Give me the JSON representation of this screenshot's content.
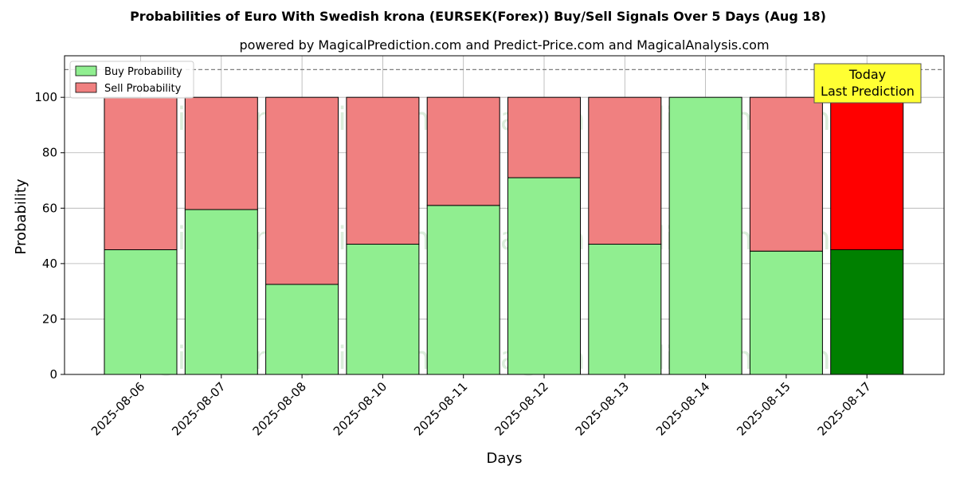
{
  "chart_data": {
    "type": "bar",
    "stacked": true,
    "title": "Probabilities of Euro With Swedish krona (EURSEK(Forex)) Buy/Sell Signals Over 5 Days (Aug 18)",
    "subtitle": "powered by MagicalPrediction.com and Predict-Price.com and MagicalAnalysis.com",
    "xlabel": "Days",
    "ylabel": "Probability",
    "ylim": [
      0,
      115
    ],
    "yticks": [
      0,
      20,
      40,
      60,
      80,
      100
    ],
    "reference_line": 110,
    "grid": true,
    "legend_position": "top-left",
    "categories": [
      "2025-08-06",
      "2025-08-07",
      "2025-08-08",
      "2025-08-10",
      "2025-08-11",
      "2025-08-12",
      "2025-08-13",
      "2025-08-14",
      "2025-08-15",
      "2025-08-17"
    ],
    "series": [
      {
        "name": "Buy Probability",
        "color": "#90ee90",
        "values": [
          45,
          59.5,
          32.5,
          47,
          61,
          71,
          47,
          100,
          44.5,
          45
        ]
      },
      {
        "name": "Sell Probability",
        "color": "#f08080",
        "values": [
          55,
          40.5,
          67.5,
          53,
          39,
          29,
          53,
          0,
          55.5,
          55
        ]
      }
    ],
    "highlight": {
      "index": 9,
      "buy_color": "#008000",
      "sell_color": "#ff0000"
    },
    "annotation": {
      "line1": "Today",
      "line2": "Last Prediction",
      "background": "#ffff33"
    },
    "watermarks": [
      "MagicalAnalysis.com",
      "MagicalPrediction.com"
    ]
  }
}
